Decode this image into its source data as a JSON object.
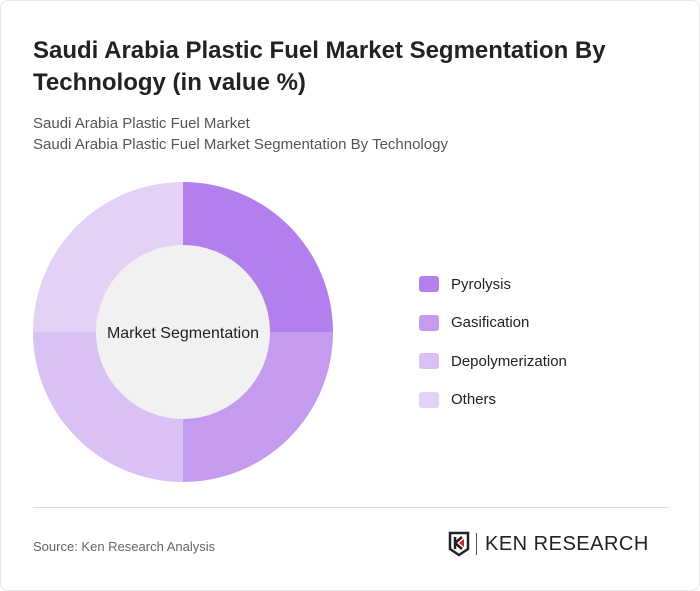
{
  "title": "Saudi Arabia Plastic Fuel Market Segmentation By Technology (in value %)",
  "subtitle_1": "Saudi Arabia Plastic Fuel Market",
  "subtitle_2": "Saudi Arabia Plastic Fuel Market Segmentation By Technology",
  "source": "Source: Ken Research Analysis",
  "logo_text": "KEN RESEARCH",
  "chart_data": {
    "type": "pie",
    "variant": "donut",
    "center_label": "Market Segmentation",
    "categories": [
      "Pyrolysis",
      "Gasification",
      "Depolymerization",
      "Others"
    ],
    "values": [
      25,
      25,
      25,
      25
    ],
    "colors": [
      "#b27fec",
      "#c49bee",
      "#d9c1f5",
      "#e3d2f6"
    ],
    "legend_position": "right"
  }
}
